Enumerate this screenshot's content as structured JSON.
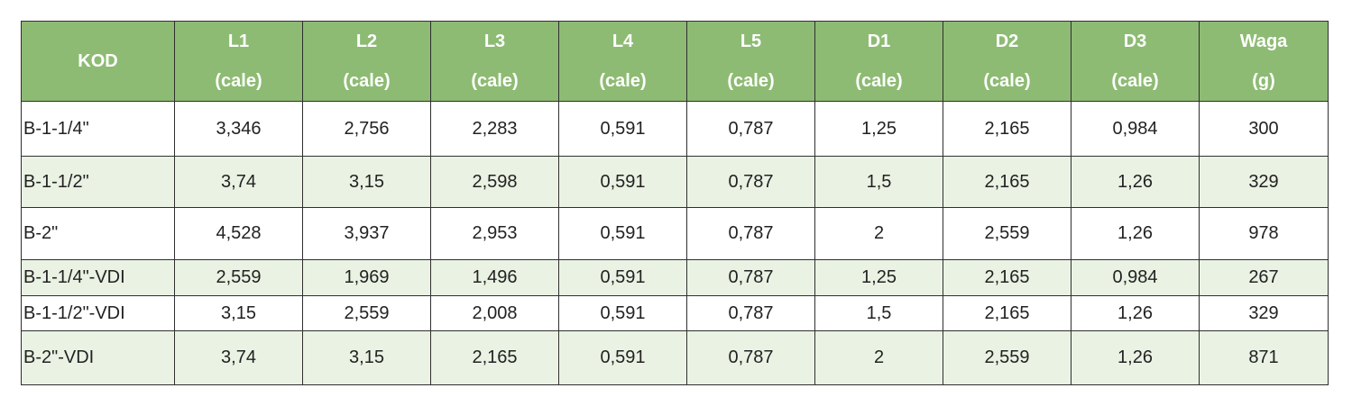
{
  "table": {
    "headers": [
      {
        "line1": "KOD",
        "line2": ""
      },
      {
        "line1": "L1",
        "line2": "(cale)"
      },
      {
        "line1": "L2",
        "line2": "(cale)"
      },
      {
        "line1": "L3",
        "line2": "(cale)"
      },
      {
        "line1": "L4",
        "line2": "(cale)"
      },
      {
        "line1": "L5",
        "line2": "(cale)"
      },
      {
        "line1": "D1",
        "line2": "(cale)"
      },
      {
        "line1": "D2",
        "line2": "(cale)"
      },
      {
        "line1": "D3",
        "line2": "(cale)"
      },
      {
        "line1": "Waga",
        "line2": "(g)"
      }
    ],
    "rows": [
      [
        "B-1-1/4\"",
        "3,346",
        "2,756",
        "2,283",
        "0,591",
        "0,787",
        "1,25",
        "2,165",
        "0,984",
        "300"
      ],
      [
        "B-1-1/2\"",
        "3,74",
        "3,15",
        "2,598",
        "0,591",
        "0,787",
        "1,5",
        "2,165",
        "1,26",
        "329"
      ],
      [
        "B-2\"",
        "4,528",
        "3,937",
        "2,953",
        "0,591",
        "0,787",
        "2",
        "2,559",
        "1,26",
        "978"
      ],
      [
        "B-1-1/4\"-VDI",
        "2,559",
        "1,969",
        "1,496",
        "0,591",
        "0,787",
        "1,25",
        "2,165",
        "0,984",
        "267"
      ],
      [
        "B-1-1/2\"-VDI",
        "3,15",
        "2,559",
        "2,008",
        "0,591",
        "0,787",
        "1,5",
        "2,165",
        "1,26",
        "329"
      ],
      [
        "B-2\"-VDI",
        "3,74",
        "3,15",
        "2,165",
        "0,591",
        "0,787",
        "2",
        "2,559",
        "1,26",
        "871"
      ]
    ]
  },
  "colors": {
    "header_background": "#8dbb73",
    "header_text": "#ffffff",
    "row_white": "#ffffff",
    "row_green": "#eaf2e4",
    "border": "#2f2f2f"
  }
}
